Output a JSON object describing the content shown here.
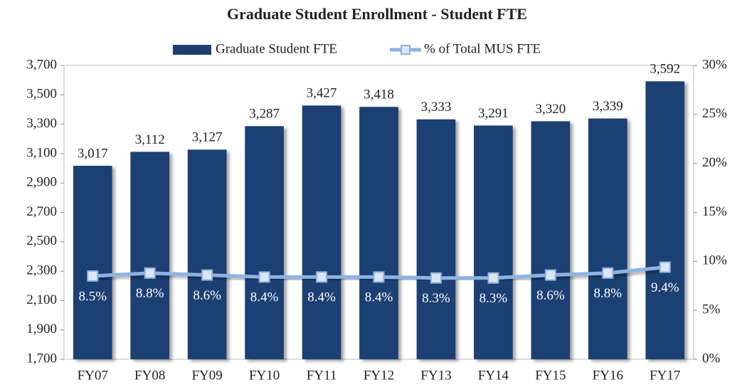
{
  "chart_data": {
    "type": "bar",
    "title": "Graduate Student Enrollment - Student FTE",
    "categories": [
      "FY07",
      "FY08",
      "FY09",
      "FY10",
      "FY11",
      "FY12",
      "FY13",
      "FY14",
      "FY15",
      "FY16",
      "FY17"
    ],
    "series": [
      {
        "name": "Graduate Student FTE",
        "type": "bar",
        "color": "#1f3f73",
        "values": [
          3017,
          3112,
          3127,
          3287,
          3427,
          3418,
          3333,
          3291,
          3320,
          3339,
          3592
        ],
        "value_labels": [
          "3,017",
          "3,112",
          "3,127",
          "3,287",
          "3,427",
          "3,418",
          "3,333",
          "3,291",
          "3,320",
          "3,339",
          "3,592"
        ]
      },
      {
        "name": "% of Total MUS FTE",
        "type": "line",
        "axis": "y2",
        "color": "#8db3e2",
        "values": [
          8.5,
          8.8,
          8.6,
          8.4,
          8.4,
          8.4,
          8.3,
          8.3,
          8.6,
          8.8,
          9.4
        ],
        "value_labels": [
          "8.5%",
          "8.8%",
          "8.6%",
          "8.4%",
          "8.4%",
          "8.4%",
          "8.3%",
          "8.3%",
          "8.6%",
          "8.8%",
          "9.4%"
        ]
      }
    ],
    "ylim": [
      1700,
      3700
    ],
    "yticks": [
      {
        "value": 1700,
        "label": "1,700"
      },
      {
        "value": 1900,
        "label": "1,900"
      },
      {
        "value": 2100,
        "label": "2,100"
      },
      {
        "value": 2300,
        "label": "2,300"
      },
      {
        "value": 2500,
        "label": "2,500"
      },
      {
        "value": 2700,
        "label": "2,700"
      },
      {
        "value": 2900,
        "label": "2,900"
      },
      {
        "value": 3100,
        "label": "3,100"
      },
      {
        "value": 3300,
        "label": "3,300"
      },
      {
        "value": 3500,
        "label": "3,500"
      },
      {
        "value": 3700,
        "label": "3,700"
      }
    ],
    "y2lim": [
      0,
      30
    ],
    "y2ticks": [
      {
        "value": 0,
        "label": "0%"
      },
      {
        "value": 5,
        "label": "5%"
      },
      {
        "value": 10,
        "label": "10%"
      },
      {
        "value": 15,
        "label": "15%"
      },
      {
        "value": 20,
        "label": "20%"
      },
      {
        "value": 25,
        "label": "25%"
      },
      {
        "value": 30,
        "label": "30%"
      }
    ],
    "grid": false,
    "legend": "top"
  }
}
